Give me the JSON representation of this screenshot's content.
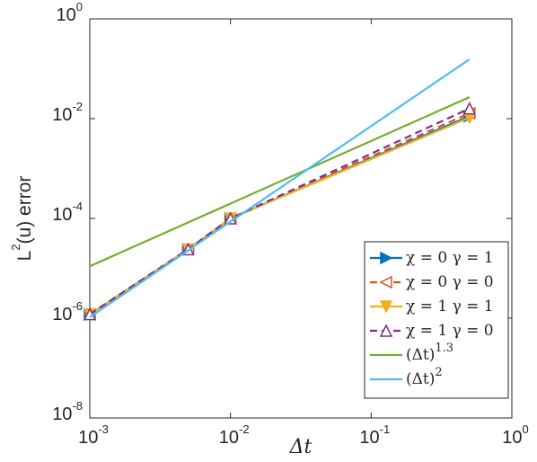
{
  "chart_data": {
    "type": "line",
    "log_x": true,
    "log_y": true,
    "xlabel": "Δt",
    "ylabel": "L",
    "ylabel_exponent": "2",
    "ylabel_rest": "(u) error",
    "xlim": [
      0.001,
      1
    ],
    "ylim": [
      1e-08,
      1
    ],
    "xticks": [
      {
        "value": 0.001,
        "label": "10",
        "exponent": "-3"
      },
      {
        "value": 0.01,
        "label": "10",
        "exponent": "-2"
      },
      {
        "value": 0.1,
        "label": "10",
        "exponent": "-1"
      },
      {
        "value": 1,
        "label": "10",
        "exponent": "0"
      }
    ],
    "yticks": [
      {
        "value": 1e-08,
        "label": "10",
        "exponent": "-8"
      },
      {
        "value": 1e-06,
        "label": "10",
        "exponent": "-6"
      },
      {
        "value": 0.0001,
        "label": "10",
        "exponent": "-4"
      },
      {
        "value": 0.01,
        "label": "10",
        "exponent": "-2"
      },
      {
        "value": 1,
        "label": "10",
        "exponent": "0"
      }
    ],
    "legend": "lower right",
    "series": [
      {
        "name": "χ = 0 γ = 1",
        "color": "#0072bd",
        "dash": false,
        "marker": "right",
        "marker_fill": true,
        "x": [
          0.001,
          0.005,
          0.01,
          0.5
        ],
        "values": [
          1.2e-06,
          2.4e-05,
          0.0001,
          0.0112
        ]
      },
      {
        "name": "χ = 0 γ = 0",
        "color": "#d95319",
        "dash": true,
        "marker": "left",
        "marker_fill": false,
        "x": [
          0.001,
          0.005,
          0.01,
          0.5
        ],
        "values": [
          1.2e-06,
          2.4e-05,
          0.0001,
          0.0128
        ]
      },
      {
        "name": "χ = 1 γ = 1",
        "color": "#edb120",
        "dash": false,
        "marker": "down",
        "marker_fill": true,
        "x": [
          0.001,
          0.005,
          0.01,
          0.5
        ],
        "values": [
          1.2e-06,
          2.4e-05,
          0.0001,
          0.0105
        ]
      },
      {
        "name": "χ = 1 γ = 0",
        "color": "#7e2f8e",
        "dash": true,
        "marker": "up",
        "marker_fill": false,
        "x": [
          0.001,
          0.005,
          0.01,
          0.5
        ],
        "values": [
          1.2e-06,
          2.4e-05,
          0.0001,
          0.016
        ]
      },
      {
        "name": "(Δt)",
        "exponent": "1.3",
        "color": "#77ac30",
        "dash": false,
        "marker": null,
        "x": [
          0.001,
          0.5
        ],
        "values": [
          1.1e-05,
          0.027
        ]
      },
      {
        "name": "(Δt)",
        "exponent": "2",
        "color": "#4dbeee",
        "dash": false,
        "marker": null,
        "x": [
          0.001,
          0.5
        ],
        "values": [
          1.05e-06,
          0.155
        ]
      }
    ]
  }
}
